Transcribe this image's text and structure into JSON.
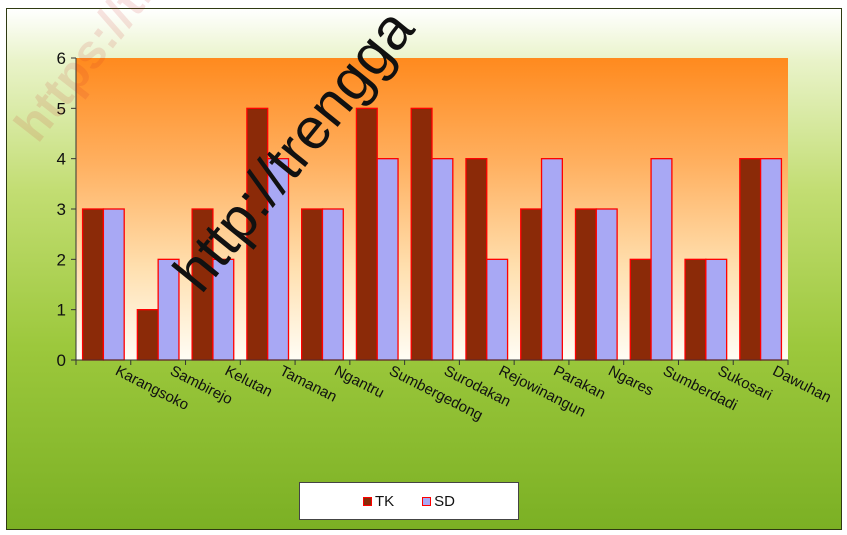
{
  "chart_data": {
    "type": "bar",
    "categories": [
      "Karangsoko",
      "Sambirejo",
      "Kelutan",
      "Tamanan",
      "Ngantru",
      "Sumbergedong",
      "Surodakan",
      "Rejowinangun",
      "Parakan",
      "Ngares",
      "Sumberdadi",
      "Sukosari",
      "Dawuhan"
    ],
    "series": [
      {
        "name": "TK",
        "values": [
          3,
          1,
          3,
          5,
          3,
          5,
          5,
          4,
          3,
          3,
          2,
          2,
          4
        ],
        "color": "#8b2a08"
      },
      {
        "name": "SD",
        "values": [
          3,
          2,
          2,
          4,
          3,
          4,
          4,
          2,
          4,
          3,
          4,
          2,
          4
        ],
        "color": "#a8a8f4"
      }
    ],
    "bar_border_color": "#ff0000",
    "ylim": [
      0,
      6
    ],
    "yticks": [
      "0",
      "1",
      "2",
      "3",
      "4",
      "5",
      "6"
    ],
    "grid": false,
    "legend_position": "bottom",
    "plot_background": "orange gradient"
  },
  "watermark": {
    "main": "http://trengga",
    "faint": "https://tre"
  }
}
